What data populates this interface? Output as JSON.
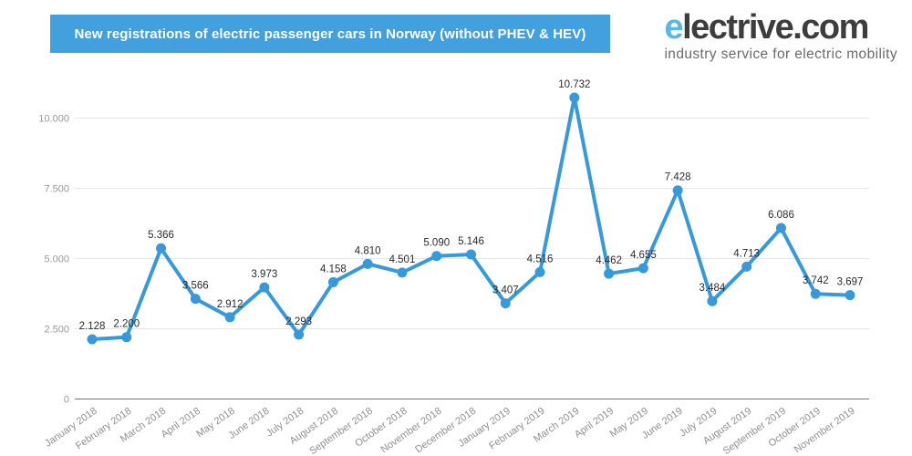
{
  "header": {
    "title": "New registrations of electric passenger cars in Norway (without PHEV & HEV)"
  },
  "logo": {
    "first_letter": "e",
    "rest": "lectrive.com",
    "tagline": "industry service for electric mobility"
  },
  "colors": {
    "banner": "#41a0dd",
    "line": "#3599db",
    "marker": "#3599db",
    "logo_accent": "#55b8e8",
    "logo_text": "#3d3d3d",
    "grid": "#e6e6e6",
    "axis": "#757575",
    "tick_label": "#999999",
    "x_label": "#8f8f8f",
    "value_label": "#2b2b2b"
  },
  "chart_data": {
    "type": "line",
    "title": "New registrations of electric passenger cars in Norway (without PHEV & HEV)",
    "categories": [
      "January 2018",
      "February 2018",
      "March 2018",
      "April 2018",
      "May 2018",
      "June 2018",
      "July 2018",
      "August 2018",
      "September 2018",
      "October 2018",
      "November 2018",
      "December 2018",
      "January 2019",
      "February 2019",
      "March 2019",
      "April 2019",
      "May 2019",
      "June 2019",
      "July 2019",
      "August 2019",
      "September 2019",
      "October 2019",
      "November 2019"
    ],
    "values": [
      2128,
      2200,
      5366,
      3566,
      2912,
      3973,
      2293,
      4158,
      4810,
      4501,
      5090,
      5146,
      3407,
      4516,
      10732,
      4462,
      4655,
      7428,
      3484,
      4713,
      6086,
      3742,
      3697
    ],
    "value_labels": [
      "2.128",
      "2.200",
      "5.366",
      "3.566",
      "2.912",
      "3.973",
      "2.293",
      "4.158",
      "4.810",
      "4.501",
      "5.090",
      "5.146",
      "3.407",
      "4.516",
      "10.732",
      "4.462",
      "4.655",
      "7.428",
      "3.484",
      "4.713",
      "6.086",
      "3.742",
      "3.697"
    ],
    "y_ticks": [
      0,
      2500,
      5000,
      7500,
      10000
    ],
    "y_tick_labels": [
      "0",
      "2.500",
      "5.000",
      "7.500",
      "10.000"
    ],
    "xlabel": "",
    "ylabel": "",
    "ylim": [
      0,
      11000
    ],
    "grid": true,
    "legend": "none"
  }
}
